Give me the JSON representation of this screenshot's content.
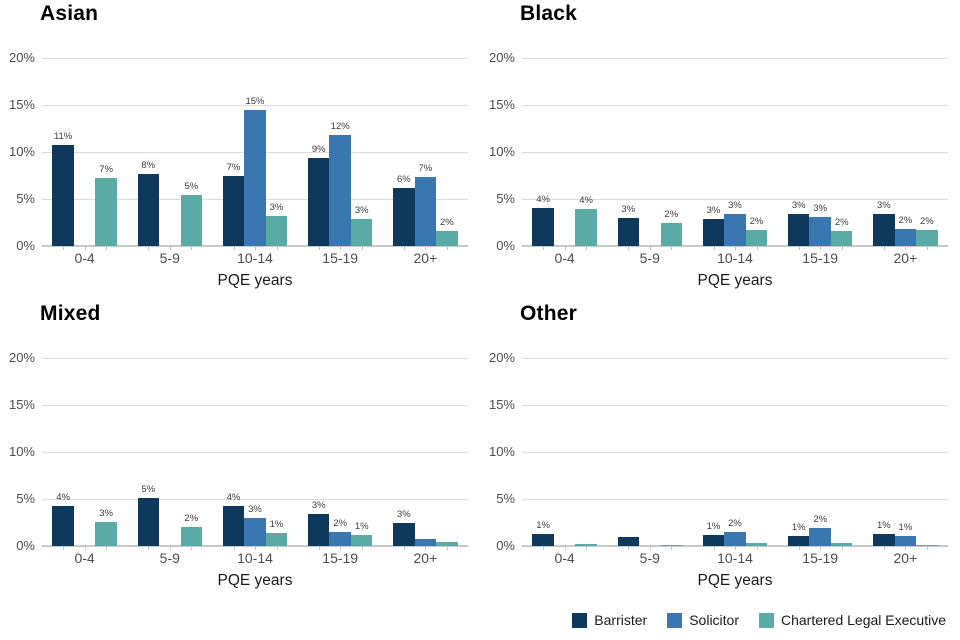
{
  "colors": {
    "barrister": "#0e385c",
    "solicitor": "#3a76af",
    "chartered_legal_executive": "#5aaaa6",
    "gridline": "#dcdcdc",
    "axis_line": "#c8c8c8",
    "tick_label": "#4d4d4d",
    "value_label": "#3c3c3c"
  },
  "axis": {
    "x_label": "PQE years",
    "categories": [
      "0-4",
      "5-9",
      "10-14",
      "15-19",
      "20+"
    ],
    "y_ticks": [
      {
        "label": "0%",
        "value": 0
      },
      {
        "label": "5%",
        "value": 5
      },
      {
        "label": "10%",
        "value": 10
      },
      {
        "label": "15%",
        "value": 15
      },
      {
        "label": "20%",
        "value": 20
      }
    ],
    "ylim": [
      0,
      20
    ],
    "grid": "horizontal-only"
  },
  "legend": {
    "position": "bottom-right",
    "items": [
      {
        "label": "Barrister",
        "color": "#0e385c"
      },
      {
        "label": "Solicitor",
        "color": "#3a76af"
      },
      {
        "label": "Chartered Legal Executive",
        "color": "#5aaaa6"
      }
    ]
  },
  "chart_data": [
    {
      "title": "Asian",
      "type": "bar",
      "xlabel": "PQE years",
      "ylim": [
        0,
        20
      ],
      "categories": [
        "0-4",
        "5-9",
        "10-14",
        "15-19",
        "20+"
      ],
      "series": [
        {
          "name": "Barrister",
          "color": "#0e385c",
          "values": [
            10.7,
            7.7,
            7.5,
            9.4,
            6.2
          ],
          "labels": [
            "11%",
            "8%",
            "7%",
            "9%",
            "6%"
          ]
        },
        {
          "name": "Solicitor",
          "color": "#3a76af",
          "values": [
            null,
            null,
            14.5,
            11.8,
            7.3
          ],
          "labels": [
            "",
            "",
            "15%",
            "12%",
            "7%"
          ]
        },
        {
          "name": "Chartered Legal Executive",
          "color": "#5aaaa6",
          "values": [
            7.2,
            5.4,
            3.2,
            2.9,
            1.6
          ],
          "labels": [
            "7%",
            "5%",
            "3%",
            "3%",
            "2%"
          ]
        }
      ]
    },
    {
      "title": "Black",
      "type": "bar",
      "xlabel": "PQE years",
      "ylim": [
        0,
        20
      ],
      "categories": [
        "0-4",
        "5-9",
        "10-14",
        "15-19",
        "20+"
      ],
      "series": [
        {
          "name": "Barrister",
          "color": "#0e385c",
          "values": [
            4.0,
            3.0,
            2.9,
            3.4,
            3.4
          ],
          "labels": [
            "4%",
            "3%",
            "3%",
            "3%",
            "3%"
          ]
        },
        {
          "name": "Solicitor",
          "color": "#3a76af",
          "values": [
            null,
            null,
            3.4,
            3.1,
            1.8
          ],
          "labels": [
            "",
            "",
            "3%",
            "3%",
            "2%"
          ]
        },
        {
          "name": "Chartered Legal Executive",
          "color": "#5aaaa6",
          "values": [
            3.9,
            2.5,
            1.7,
            1.6,
            1.7
          ],
          "labels": [
            "4%",
            "2%",
            "2%",
            "2%",
            "2%"
          ]
        }
      ]
    },
    {
      "title": "Mixed",
      "type": "bar",
      "xlabel": "PQE years",
      "ylim": [
        0,
        20
      ],
      "categories": [
        "0-4",
        "5-9",
        "10-14",
        "15-19",
        "20+"
      ],
      "series": [
        {
          "name": "Barrister",
          "color": "#0e385c",
          "values": [
            4.3,
            5.1,
            4.3,
            3.4,
            2.5
          ],
          "labels": [
            "4%",
            "5%",
            "4%",
            "3%",
            "3%"
          ]
        },
        {
          "name": "Solicitor",
          "color": "#3a76af",
          "values": [
            null,
            null,
            3.0,
            1.5,
            0.7
          ],
          "labels": [
            "",
            "",
            "3%",
            "2%",
            ""
          ]
        },
        {
          "name": "Chartered Legal Executive",
          "color": "#5aaaa6",
          "values": [
            2.6,
            2.0,
            1.4,
            1.2,
            0.4
          ],
          "labels": [
            "3%",
            "2%",
            "1%",
            "1%",
            ""
          ]
        }
      ]
    },
    {
      "title": "Other",
      "type": "bar",
      "xlabel": "PQE years",
      "ylim": [
        0,
        20
      ],
      "categories": [
        "0-4",
        "5-9",
        "10-14",
        "15-19",
        "20+"
      ],
      "series": [
        {
          "name": "Barrister",
          "color": "#0e385c",
          "values": [
            1.3,
            1.0,
            1.2,
            1.1,
            1.3
          ],
          "labels": [
            "1%",
            "",
            "1%",
            "1%",
            "1%"
          ]
        },
        {
          "name": "Solicitor",
          "color": "#3a76af",
          "values": [
            null,
            null,
            1.5,
            1.9,
            1.1
          ],
          "labels": [
            "",
            "",
            "2%",
            "2%",
            "1%"
          ]
        },
        {
          "name": "Chartered Legal Executive",
          "color": "#5aaaa6",
          "values": [
            0.2,
            0.1,
            0.3,
            0.3,
            0.1
          ],
          "labels": [
            "",
            "",
            "",
            "",
            ""
          ]
        }
      ]
    }
  ]
}
